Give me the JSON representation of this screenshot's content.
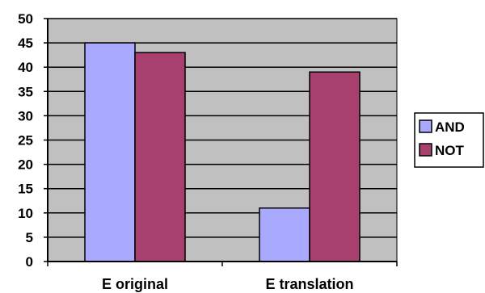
{
  "chart_data": {
    "type": "bar",
    "title": "",
    "xlabel": "",
    "ylabel": "",
    "categories": [
      "E original",
      "E translation"
    ],
    "series": [
      {
        "name": "AND",
        "values": [
          45,
          11
        ],
        "color": "#A9A9FF"
      },
      {
        "name": "NOT",
        "values": [
          43,
          39
        ],
        "color": "#A8406F"
      }
    ],
    "ylim": [
      0,
      50
    ],
    "yticks": [
      0,
      5,
      10,
      15,
      20,
      25,
      30,
      35,
      40,
      45,
      50
    ],
    "grid": true,
    "plot_background": "#C0C0C0",
    "legend_position": "right"
  }
}
